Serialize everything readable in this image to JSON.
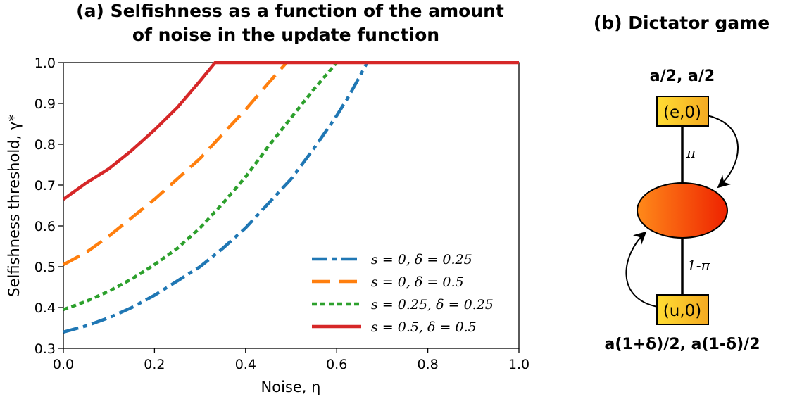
{
  "chart_data": [
    {
      "type": "line",
      "title": "(a) Selfishness as a function of the amount of noise in the update function",
      "title_lines": [
        "(a) Selfishness as a function of the amount",
        "of noise in the update function"
      ],
      "xlabel": "Noise, η",
      "ylabel": "Selfishness threshold, γ*",
      "xlim": [
        0.0,
        1.0
      ],
      "ylim": [
        0.3,
        1.0
      ],
      "x_ticks": [
        0.0,
        0.2,
        0.4,
        0.6,
        0.8,
        1.0
      ],
      "x_tick_labels": [
        "0.0",
        "0.2",
        "0.4",
        "0.6",
        "0.8",
        "1.0"
      ],
      "y_ticks": [
        0.3,
        0.4,
        0.5,
        0.6,
        0.7,
        0.8,
        0.9,
        1.0
      ],
      "y_tick_labels": [
        "0.3",
        "0.4",
        "0.5",
        "0.6",
        "0.7",
        "0.8",
        "0.9",
        "1.0"
      ],
      "grid": false,
      "legend_position": "bottom-right",
      "series": [
        {
          "name": "s = 0, δ = 0.25",
          "color": "#1f77b4",
          "dash": "dashdot",
          "x": [
            0.0,
            0.05,
            0.1,
            0.15,
            0.2,
            0.25,
            0.3,
            0.35,
            0.4,
            0.45,
            0.5,
            0.55,
            0.6,
            0.625,
            0.65,
            0.667
          ],
          "y": [
            0.34,
            0.355,
            0.375,
            0.4,
            0.43,
            0.465,
            0.5,
            0.545,
            0.595,
            0.655,
            0.715,
            0.79,
            0.87,
            0.915,
            0.965,
            1.0
          ]
        },
        {
          "name": "s = 0, δ = 0.5",
          "color": "#ff7f0e",
          "dash": "dashed",
          "x": [
            0.0,
            0.05,
            0.1,
            0.15,
            0.2,
            0.25,
            0.3,
            0.35,
            0.4,
            0.45,
            0.49
          ],
          "y": [
            0.505,
            0.535,
            0.575,
            0.62,
            0.665,
            0.715,
            0.765,
            0.825,
            0.885,
            0.95,
            1.0
          ]
        },
        {
          "name": "s = 0.25, δ = 0.25",
          "color": "#2ca02c",
          "dash": "dotted",
          "x": [
            0.0,
            0.05,
            0.1,
            0.15,
            0.2,
            0.25,
            0.3,
            0.35,
            0.4,
            0.45,
            0.5,
            0.55,
            0.6
          ],
          "y": [
            0.395,
            0.415,
            0.44,
            0.47,
            0.505,
            0.545,
            0.595,
            0.655,
            0.72,
            0.795,
            0.865,
            0.935,
            1.0
          ]
        },
        {
          "name": "s = 0.5, δ = 0.5",
          "color": "#d62728",
          "dash": "solid",
          "x": [
            0.0,
            0.05,
            0.1,
            0.15,
            0.2,
            0.25,
            0.3,
            0.333,
            1.0
          ],
          "y": [
            0.665,
            0.705,
            0.74,
            0.785,
            0.835,
            0.89,
            0.955,
            1.0,
            1.0
          ]
        }
      ],
      "extension_to_x": 1.0
    },
    {
      "type": "diagram",
      "title": "(b) Dictator game",
      "top_node": {
        "label": "(e,0)",
        "payoff": "a/2, a/2"
      },
      "bottom_node": {
        "label": "(u,0)",
        "payoff": "a(1+δ)/2, a(1-δ)/2"
      },
      "edge_top_label": "π",
      "edge_bottom_label": "1-π",
      "colors": {
        "box_fill_start": "#ffdd33",
        "box_fill_end": "#f4aa22",
        "ellipse_start": "#ff8a1a",
        "ellipse_end": "#ee2200"
      }
    }
  ]
}
